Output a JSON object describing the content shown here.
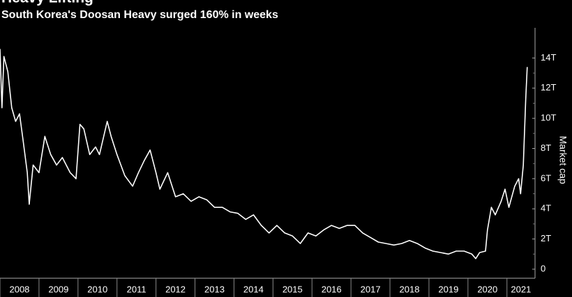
{
  "chart_data": {
    "type": "line",
    "title": "Heavy Lifting",
    "subtitle": "South Korea's Doosan Heavy surged 160% in weeks",
    "y_label": "Market cap",
    "x": [
      2008.0,
      2008.05,
      2008.1,
      2008.2,
      2008.3,
      2008.4,
      2008.5,
      2008.6,
      2008.7,
      2008.75,
      2008.85,
      2009.0,
      2009.15,
      2009.3,
      2009.45,
      2009.6,
      2009.8,
      2009.95,
      2010.05,
      2010.15,
      2010.3,
      2010.45,
      2010.55,
      2010.75,
      2010.85,
      2011.0,
      2011.2,
      2011.4,
      2011.55,
      2011.7,
      2011.85,
      2012.0,
      2012.1,
      2012.3,
      2012.5,
      2012.7,
      2012.9,
      2013.1,
      2013.3,
      2013.5,
      2013.7,
      2013.9,
      2014.1,
      2014.3,
      2014.5,
      2014.7,
      2014.9,
      2015.1,
      2015.3,
      2015.5,
      2015.7,
      2015.9,
      2016.1,
      2016.3,
      2016.5,
      2016.7,
      2016.9,
      2017.1,
      2017.3,
      2017.5,
      2017.7,
      2017.9,
      2018.1,
      2018.3,
      2018.5,
      2018.7,
      2018.9,
      2019.1,
      2019.3,
      2019.5,
      2019.7,
      2019.9,
      2020.1,
      2020.2,
      2020.3,
      2020.45,
      2020.5,
      2020.6,
      2020.7,
      2020.85,
      2020.95,
      2021.05,
      2021.2,
      2021.3,
      2021.35,
      2021.42,
      2021.48,
      2021.52
    ],
    "series": [
      {
        "name": "Market cap",
        "color": "#ffffff",
        "values": [
          14.6,
          10.7,
          14.1,
          13.1,
          10.7,
          9.8,
          10.3,
          8.4,
          6.4,
          4.3,
          6.9,
          6.4,
          8.8,
          7.6,
          6.9,
          7.4,
          6.4,
          6.0,
          9.6,
          9.3,
          7.6,
          8.1,
          7.6,
          9.8,
          8.8,
          7.6,
          6.2,
          5.5,
          6.4,
          7.2,
          7.9,
          6.4,
          5.3,
          6.4,
          4.8,
          5.0,
          4.5,
          4.8,
          4.6,
          4.1,
          4.1,
          3.8,
          3.7,
          3.3,
          3.6,
          2.9,
          2.4,
          2.9,
          2.4,
          2.2,
          1.7,
          2.4,
          2.2,
          2.6,
          2.9,
          2.7,
          2.9,
          2.9,
          2.4,
          2.1,
          1.8,
          1.7,
          1.6,
          1.7,
          1.9,
          1.7,
          1.4,
          1.2,
          1.1,
          1.0,
          1.2,
          1.2,
          1.0,
          0.7,
          1.1,
          1.2,
          2.6,
          4.1,
          3.6,
          4.5,
          5.3,
          4.1,
          5.5,
          6.0,
          5.0,
          6.9,
          11.2,
          13.4
        ]
      }
    ],
    "xlim": [
      2008,
      2021.72
    ],
    "xticks": [
      2008,
      2009,
      2010,
      2011,
      2012,
      2013,
      2014,
      2015,
      2016,
      2017,
      2018,
      2019,
      2020,
      2021
    ],
    "ylim": [
      -0.6,
      16
    ],
    "yticks": [
      0,
      {
        "value": 2,
        "label": "2T"
      },
      {
        "value": 4,
        "label": "4T"
      },
      {
        "value": 6,
        "label": "6T"
      },
      {
        "value": 8,
        "label": "8T"
      },
      {
        "value": 10,
        "label": "10T"
      },
      {
        "value": 12,
        "label": "12T"
      },
      {
        "value": 14,
        "label": "14T"
      }
    ],
    "grid": false
  }
}
